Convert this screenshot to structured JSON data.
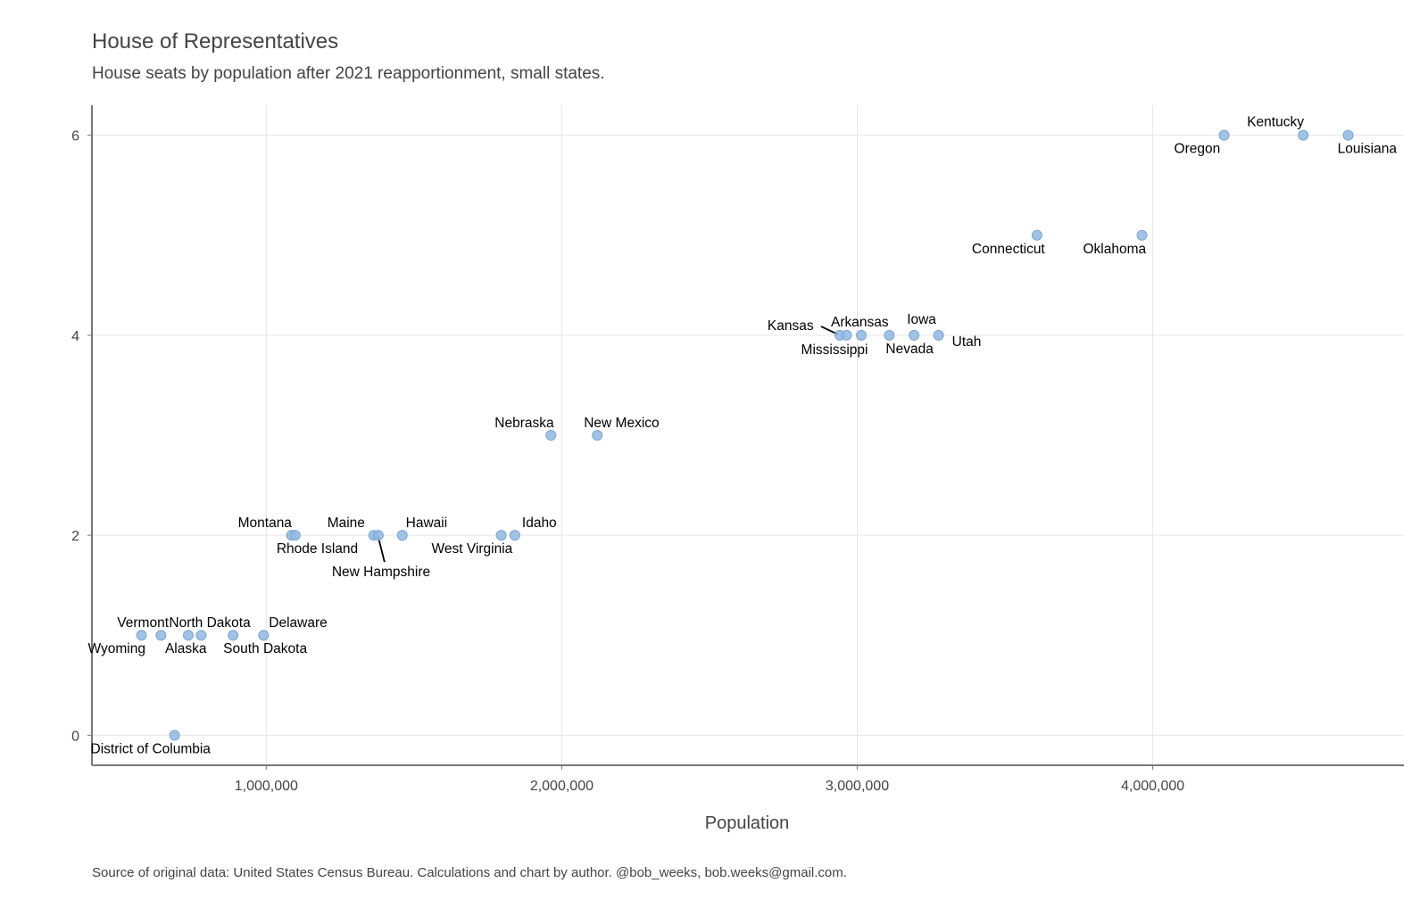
{
  "chart_data": {
    "type": "scatter",
    "title": "House of Representatives",
    "subtitle": "House seats by population after 2021 reapportionment, small states.",
    "xlabel": "Population",
    "ylabel": "",
    "caption": "Source of original data: United States Census Bureau. Calculations and chart by author. @bob_weeks, bob.weeks@gmail.com.",
    "xlim": [
      410000,
      4850000
    ],
    "ylim": [
      -0.3,
      6.3
    ],
    "x_ticks": [
      1000000,
      2000000,
      3000000,
      4000000
    ],
    "x_tick_labels": [
      "1,000,000",
      "2,000,000",
      "3,000,000",
      "4,000,000"
    ],
    "y_ticks": [
      0,
      2,
      4,
      6
    ],
    "y_tick_labels": [
      "0",
      "2",
      "4",
      "6"
    ],
    "grid": true,
    "point_color": "#8fb8e0",
    "points": [
      {
        "label": "District of Columbia",
        "x": 689545,
        "y": 0
      },
      {
        "label": "Wyoming",
        "x": 577719,
        "y": 1
      },
      {
        "label": "Vermont",
        "x": 643503,
        "y": 1
      },
      {
        "label": "Alaska",
        "x": 736081,
        "y": 1
      },
      {
        "label": "North Dakota",
        "x": 779702,
        "y": 1
      },
      {
        "label": "South Dakota",
        "x": 887770,
        "y": 1
      },
      {
        "label": "Delaware",
        "x": 990837,
        "y": 1
      },
      {
        "label": "Montana",
        "x": 1085407,
        "y": 2
      },
      {
        "label": "Rhode Island",
        "x": 1098163,
        "y": 2
      },
      {
        "label": "Maine",
        "x": 1363582,
        "y": 2
      },
      {
        "label": "New Hampshire",
        "x": 1379089,
        "y": 2
      },
      {
        "label": "Hawaii",
        "x": 1460137,
        "y": 2
      },
      {
        "label": "West Virginia",
        "x": 1795045,
        "y": 2
      },
      {
        "label": "Idaho",
        "x": 1841377,
        "y": 2
      },
      {
        "label": "Nebraska",
        "x": 1963333,
        "y": 3
      },
      {
        "label": "New Mexico",
        "x": 2120220,
        "y": 3
      },
      {
        "label": "Kansas",
        "x": 2940865,
        "y": 4
      },
      {
        "label": "Mississippi",
        "x": 2963914,
        "y": 4
      },
      {
        "label": "Arkansas",
        "x": 3013756,
        "y": 4
      },
      {
        "label": "Nevada",
        "x": 3108462,
        "y": 4
      },
      {
        "label": "Iowa",
        "x": 3192406,
        "y": 4
      },
      {
        "label": "Utah",
        "x": 3275252,
        "y": 4
      },
      {
        "label": "Connecticut",
        "x": 3608298,
        "y": 5
      },
      {
        "label": "Oklahoma",
        "x": 3963516,
        "y": 5
      },
      {
        "label": "Oregon",
        "x": 4241500,
        "y": 6
      },
      {
        "label": "Kentucky",
        "x": 4509342,
        "y": 6
      },
      {
        "label": "Louisiana",
        "x": 4661468,
        "y": 6
      }
    ]
  }
}
